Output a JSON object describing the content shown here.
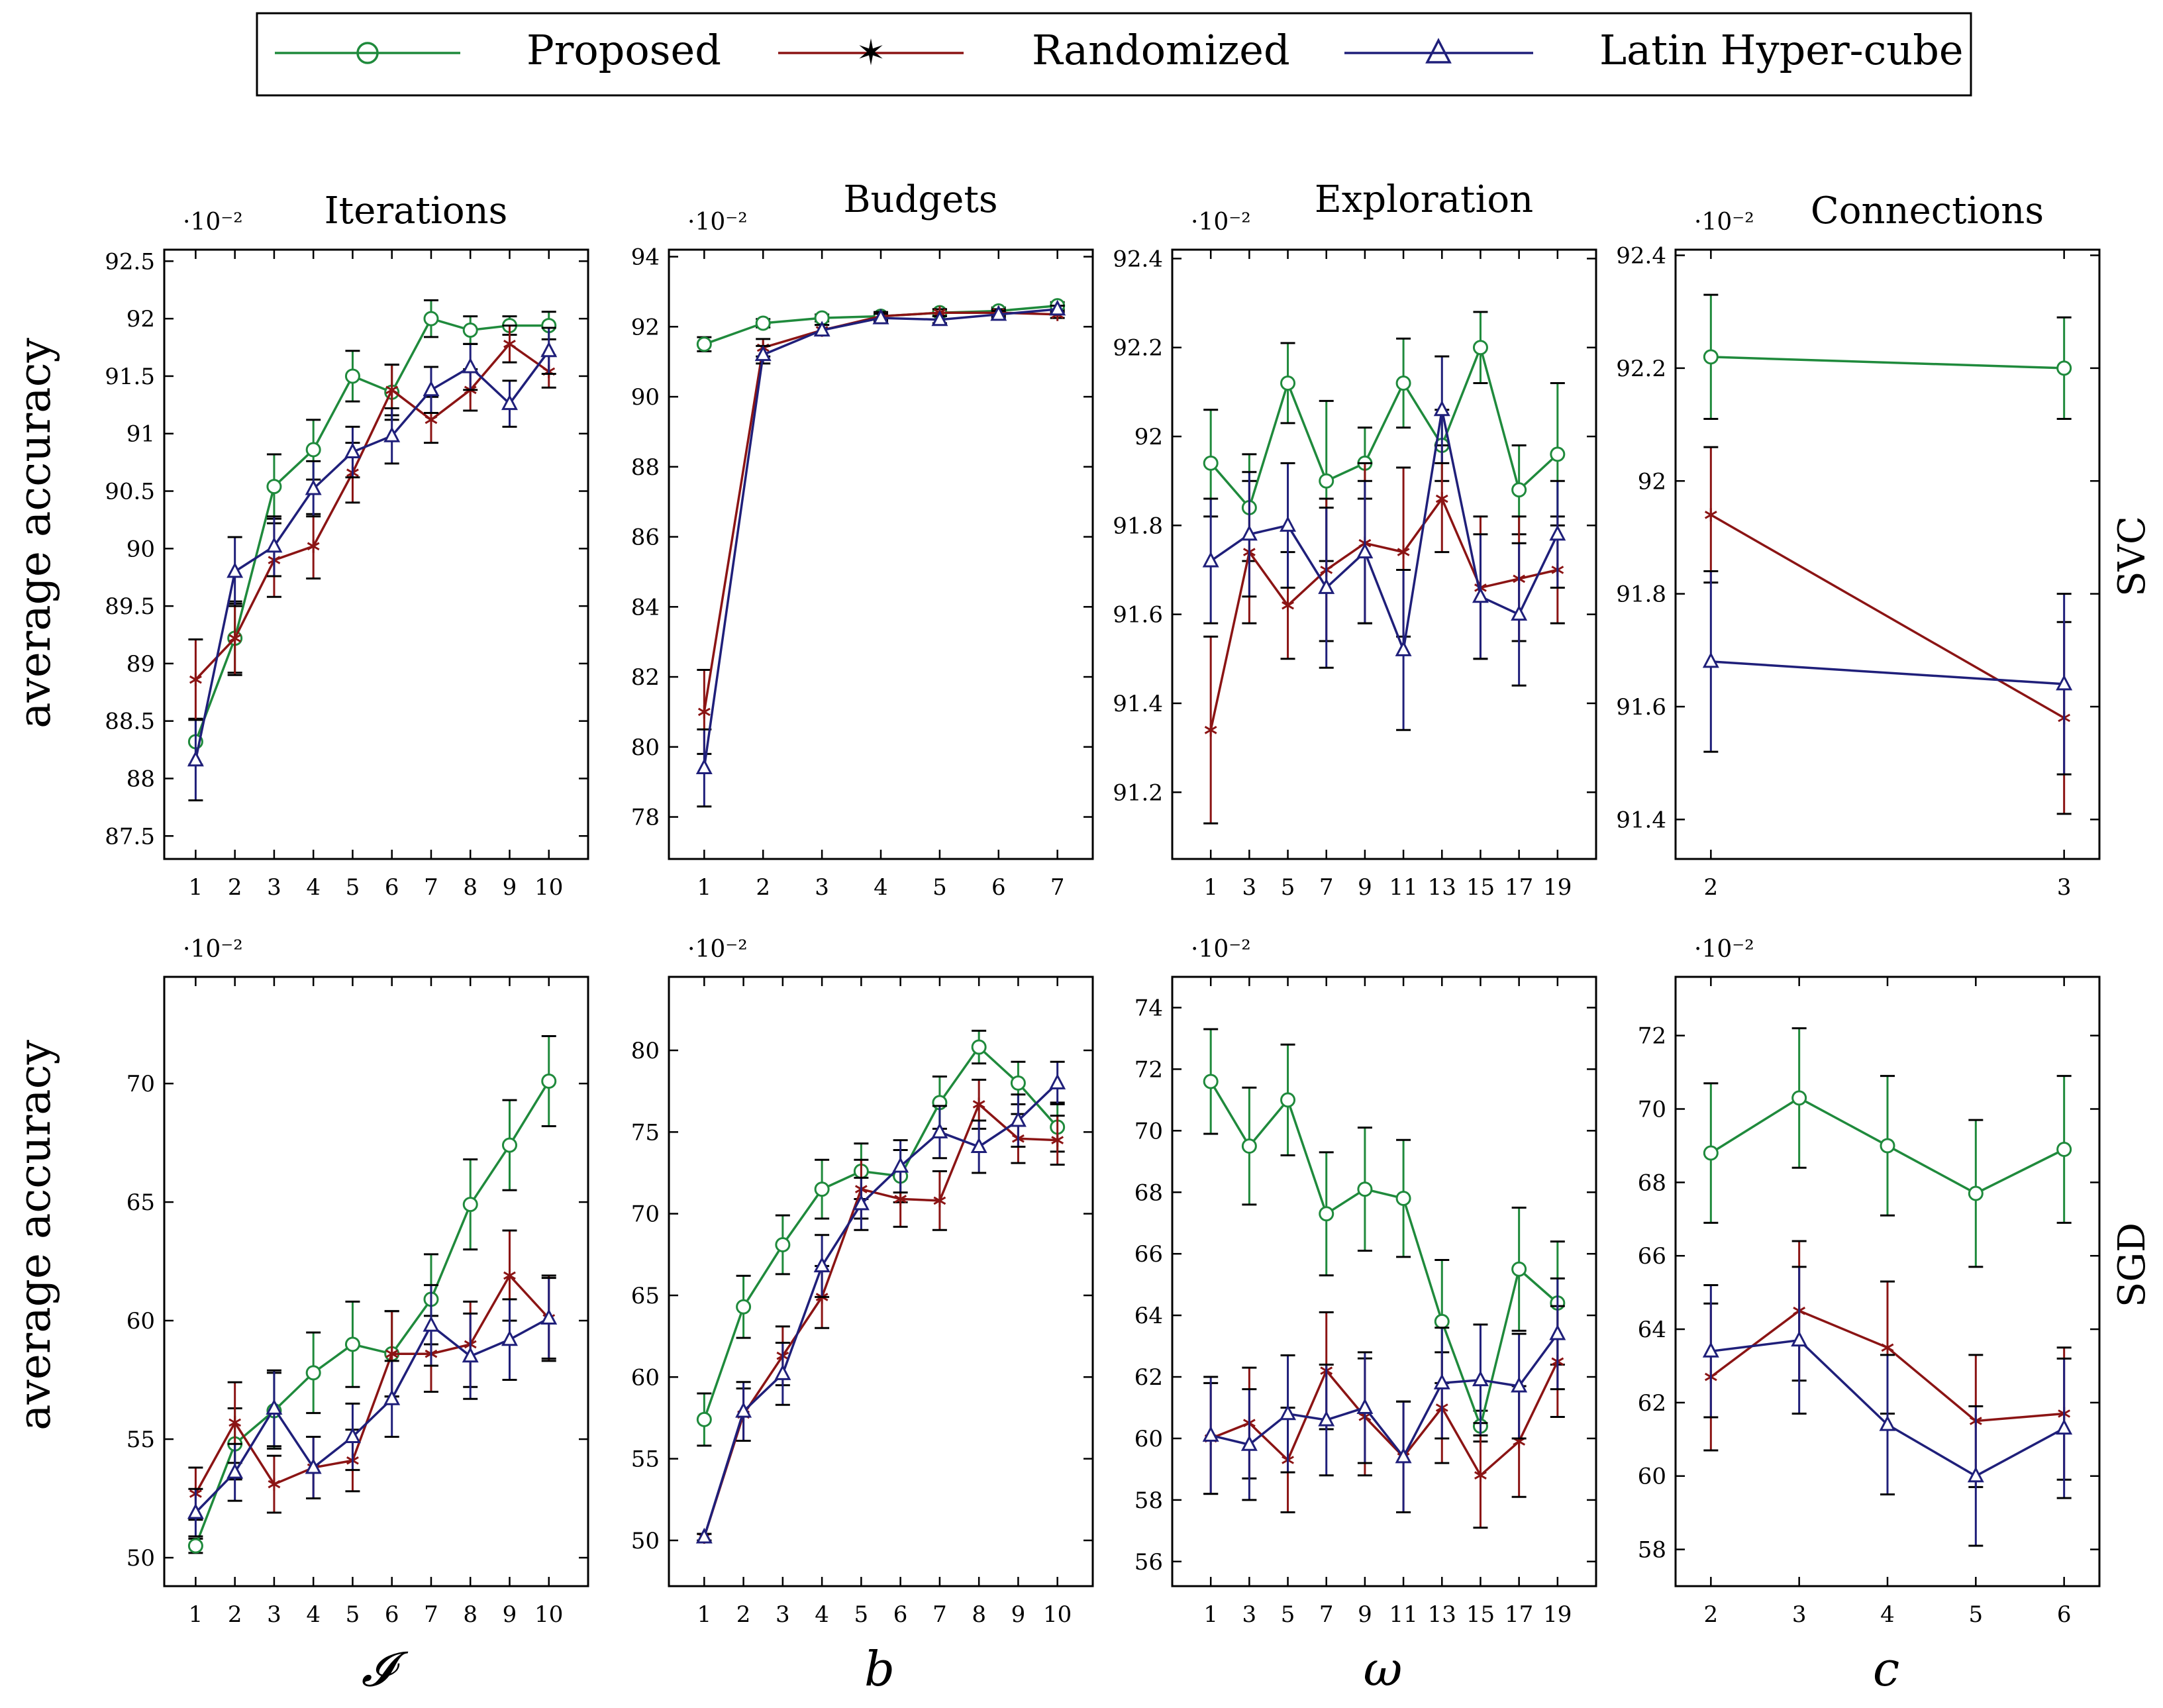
{
  "legend": {
    "items": [
      {
        "label": "Proposed",
        "color": "#1f8a3c",
        "marker": "circle"
      },
      {
        "label": "Randomized",
        "color": "#8b1414",
        "marker": "star"
      },
      {
        "label": "Latin Hyper-cube",
        "color": "#1f1f7a",
        "marker": "triangle"
      }
    ]
  },
  "row_labels": [
    "SVC",
    "SGD"
  ],
  "ylabel": "average accuracy",
  "col_xlabels": [
    "𝓘",
    "b",
    "ω",
    "c"
  ],
  "scale_text": "·10⁻²",
  "chart_data": [
    {
      "type": "line",
      "title": "Iterations",
      "row": "SVC",
      "xlabel": "𝓘",
      "ylabel": "average accuracy",
      "x": [
        1,
        2,
        3,
        4,
        5,
        6,
        7,
        8,
        9,
        10
      ],
      "xticks": [
        "1",
        "2",
        "3",
        "4",
        "5",
        "6",
        "7",
        "8",
        "9",
        "10"
      ],
      "xlim": [
        0.2,
        11
      ],
      "yticks": [
        87.5,
        88,
        88.5,
        89,
        89.5,
        90,
        90.5,
        91,
        91.5,
        92,
        92.5
      ],
      "yticklabels": [
        "87.5",
        "88",
        "88.5",
        "89",
        "89.5",
        "90",
        "90.5",
        "91",
        "91.5",
        "92",
        "92.5"
      ],
      "ylim": [
        87.3,
        92.6
      ],
      "series": [
        {
          "name": "Proposed",
          "values": [
            88.32,
            89.22,
            90.54,
            90.86,
            91.5,
            91.36,
            92.0,
            91.9,
            91.94,
            91.94
          ],
          "errors": [
            0.2,
            0.3,
            0.28,
            0.26,
            0.22,
            0.24,
            0.16,
            0.12,
            0.08,
            0.12
          ]
        },
        {
          "name": "Randomized",
          "values": [
            88.86,
            89.22,
            89.9,
            90.02,
            90.66,
            91.38,
            91.12,
            91.38,
            91.78,
            91.54
          ],
          "errors": [
            0.35,
            0.32,
            0.32,
            0.28,
            0.26,
            0.22,
            0.2,
            0.18,
            0.16,
            0.14
          ]
        },
        {
          "name": "Latin Hyper-cube",
          "values": [
            88.16,
            89.8,
            90.02,
            90.52,
            90.84,
            90.98,
            91.38,
            91.58,
            91.26,
            91.72
          ],
          "errors": [
            0.35,
            0.3,
            0.26,
            0.24,
            0.22,
            0.24,
            0.2,
            0.2,
            0.2,
            0.2
          ]
        }
      ]
    },
    {
      "type": "line",
      "title": "Budgets",
      "row": "SVC",
      "xlabel": "b",
      "ylabel": "average accuracy",
      "x": [
        1,
        2,
        3,
        4,
        5,
        6,
        7
      ],
      "xticks": [
        "1",
        "2",
        "3",
        "4",
        "5",
        "6",
        "7"
      ],
      "xlim": [
        0.4,
        7.6
      ],
      "yticks": [
        78,
        80,
        82,
        84,
        86,
        88,
        90,
        92,
        94
      ],
      "yticklabels": [
        "78",
        "80",
        "82",
        "84",
        "86",
        "88",
        "90",
        "92",
        "94"
      ],
      "ylim": [
        76.8,
        94.2
      ],
      "series": [
        {
          "name": "Proposed",
          "values": [
            91.5,
            92.1,
            92.25,
            92.3,
            92.4,
            92.45,
            92.6
          ],
          "errors": [
            0.2,
            0.12,
            0.1,
            0.1,
            0.1,
            0.1,
            0.1
          ]
        },
        {
          "name": "Randomized",
          "values": [
            81.0,
            91.4,
            91.9,
            92.3,
            92.4,
            92.4,
            92.35
          ],
          "errors": [
            1.2,
            0.25,
            0.15,
            0.12,
            0.1,
            0.1,
            0.1
          ]
        },
        {
          "name": "Latin Hyper-cube",
          "values": [
            79.4,
            91.2,
            91.9,
            92.25,
            92.2,
            92.35,
            92.5
          ],
          "errors": [
            1.1,
            0.25,
            0.15,
            0.12,
            0.1,
            0.1,
            0.1
          ]
        }
      ]
    },
    {
      "type": "line",
      "title": "Exploration",
      "row": "SVC",
      "xlabel": "ω",
      "ylabel": "average accuracy",
      "x": [
        1,
        3,
        5,
        7,
        9,
        11,
        13,
        15,
        17,
        19
      ],
      "xticks": [
        "1",
        "3",
        "5",
        "7",
        "9",
        "11",
        "13",
        "15",
        "17",
        "19"
      ],
      "xlim": [
        -1,
        21
      ],
      "yticks": [
        91.2,
        91.4,
        91.6,
        91.8,
        92,
        92.2,
        92.4
      ],
      "yticklabels": [
        "91.2",
        "91.4",
        "91.6",
        "91.8",
        "92",
        "92.2",
        "92.4"
      ],
      "ylim": [
        91.05,
        92.42
      ],
      "series": [
        {
          "name": "Proposed",
          "values": [
            91.94,
            91.84,
            92.12,
            91.9,
            91.94,
            92.12,
            91.98,
            92.2,
            91.88,
            91.96
          ],
          "errors": [
            0.12,
            0.12,
            0.09,
            0.18,
            0.08,
            0.1,
            0.08,
            0.08,
            0.1,
            0.16
          ]
        },
        {
          "name": "Randomized",
          "values": [
            91.34,
            91.74,
            91.62,
            91.7,
            91.76,
            91.74,
            91.86,
            91.66,
            91.68,
            91.7
          ],
          "errors": [
            0.21,
            0.16,
            0.12,
            0.16,
            0.18,
            0.19,
            0.12,
            0.16,
            0.14,
            0.12
          ]
        },
        {
          "name": "Latin Hyper-cube",
          "values": [
            91.72,
            91.78,
            91.8,
            91.66,
            91.74,
            91.52,
            92.06,
            91.64,
            91.6,
            91.78
          ],
          "errors": [
            0.14,
            0.14,
            0.14,
            0.18,
            0.16,
            0.18,
            0.12,
            0.14,
            0.16,
            0.12
          ]
        }
      ]
    },
    {
      "type": "line",
      "title": "Connections",
      "row": "SVC",
      "xlabel": "c",
      "ylabel": "average accuracy",
      "x": [
        2,
        3
      ],
      "xticks": [
        "2",
        "3"
      ],
      "xlim": [
        1.9,
        3.1
      ],
      "yticks": [
        91.4,
        91.6,
        91.8,
        92,
        92.2,
        92.4
      ],
      "yticklabels": [
        "91.4",
        "91.6",
        "91.8",
        "92",
        "92.2",
        "92.4"
      ],
      "ylim": [
        91.33,
        92.41
      ],
      "series": [
        {
          "name": "Proposed",
          "values": [
            92.22,
            92.2
          ],
          "errors": [
            0.11,
            0.09
          ]
        },
        {
          "name": "Randomized",
          "values": [
            91.94,
            91.58
          ],
          "errors": [
            0.12,
            0.17
          ]
        },
        {
          "name": "Latin Hyper-cube",
          "values": [
            91.68,
            91.64
          ],
          "errors": [
            0.16,
            0.16
          ]
        }
      ]
    },
    {
      "type": "line",
      "title": "",
      "row": "SGD",
      "xlabel": "𝓘",
      "ylabel": "average accuracy",
      "x": [
        1,
        2,
        3,
        4,
        5,
        6,
        7,
        8,
        9,
        10
      ],
      "xticks": [
        "1",
        "2",
        "3",
        "4",
        "5",
        "6",
        "7",
        "8",
        "9",
        "10"
      ],
      "xlim": [
        0.2,
        11
      ],
      "yticks": [
        50,
        55,
        60,
        65,
        70
      ],
      "yticklabels": [
        "50",
        "55",
        "60",
        "65",
        "70"
      ],
      "ylim": [
        48.8,
        74.5
      ],
      "series": [
        {
          "name": "Proposed",
          "values": [
            50.5,
            54.8,
            56.2,
            57.8,
            59.0,
            58.6,
            60.9,
            64.9,
            67.4,
            70.1
          ],
          "errors": [
            0.3,
            1.5,
            1.6,
            1.7,
            1.8,
            1.8,
            1.9,
            1.9,
            1.9,
            1.9
          ]
        },
        {
          "name": "Randomized",
          "values": [
            52.7,
            55.7,
            53.1,
            53.8,
            54.1,
            58.6,
            58.6,
            59.0,
            61.9,
            60.1
          ],
          "errors": [
            1.1,
            1.7,
            1.2,
            1.3,
            1.3,
            1.8,
            1.6,
            1.8,
            1.9,
            1.8
          ]
        },
        {
          "name": "Latin Hyper-cube",
          "values": [
            51.9,
            53.6,
            56.3,
            53.8,
            55.1,
            56.7,
            59.8,
            58.5,
            59.2,
            60.1
          ],
          "errors": [
            1.0,
            1.2,
            1.6,
            1.3,
            1.4,
            1.6,
            1.7,
            1.8,
            1.7,
            1.7
          ]
        }
      ]
    },
    {
      "type": "line",
      "title": "",
      "row": "SGD",
      "xlabel": "b",
      "ylabel": "average accuracy",
      "x": [
        1,
        2,
        3,
        4,
        5,
        6,
        7,
        8,
        9,
        10
      ],
      "xticks": [
        "1",
        "2",
        "3",
        "4",
        "5",
        "6",
        "7",
        "8",
        "9",
        "10"
      ],
      "xlim": [
        0.1,
        10.9
      ],
      "yticks": [
        50,
        55,
        60,
        65,
        70,
        75,
        80
      ],
      "yticklabels": [
        "50",
        "55",
        "60",
        "65",
        "70",
        "75",
        "80"
      ],
      "ylim": [
        47.2,
        84.5
      ],
      "series": [
        {
          "name": "Proposed",
          "values": [
            57.4,
            64.3,
            68.1,
            71.5,
            72.6,
            72.3,
            76.8,
            80.2,
            78.0,
            75.3
          ],
          "errors": [
            1.6,
            1.9,
            1.8,
            1.8,
            1.7,
            1.6,
            1.6,
            1.0,
            1.3,
            1.5
          ]
        },
        {
          "name": "Randomized",
          "values": [
            50.2,
            57.7,
            61.3,
            64.9,
            71.5,
            70.9,
            70.8,
            76.7,
            74.6,
            74.5
          ],
          "errors": [
            0.2,
            1.6,
            1.8,
            1.9,
            1.8,
            1.7,
            1.8,
            1.5,
            1.5,
            1.5
          ]
        },
        {
          "name": "Latin Hyper-cube",
          "values": [
            50.2,
            57.9,
            60.2,
            66.8,
            70.6,
            72.9,
            75.0,
            74.1,
            75.7,
            78.0
          ],
          "errors": [
            0.2,
            1.8,
            1.9,
            1.9,
            1.6,
            1.6,
            1.6,
            1.6,
            1.6,
            1.3
          ]
        }
      ]
    },
    {
      "type": "line",
      "title": "",
      "row": "SGD",
      "xlabel": "ω",
      "ylabel": "average accuracy",
      "x": [
        1,
        3,
        5,
        7,
        9,
        11,
        13,
        15,
        17,
        19
      ],
      "xticks": [
        "1",
        "3",
        "5",
        "7",
        "9",
        "11",
        "13",
        "15",
        "17",
        "19"
      ],
      "xlim": [
        -1,
        21
      ],
      "yticks": [
        56,
        58,
        60,
        62,
        64,
        66,
        68,
        70,
        72,
        74
      ],
      "yticklabels": [
        "56",
        "58",
        "60",
        "62",
        "64",
        "66",
        "68",
        "70",
        "72",
        "74"
      ],
      "ylim": [
        55.2,
        75.0
      ],
      "series": [
        {
          "name": "Proposed",
          "values": [
            71.6,
            69.5,
            71.0,
            67.3,
            68.1,
            67.8,
            63.8,
            60.4,
            65.5,
            64.4
          ],
          "errors": [
            1.7,
            1.9,
            1.8,
            2.0,
            2.0,
            1.9,
            2.0,
            0.5,
            2.0,
            2.0
          ]
        },
        {
          "name": "Randomized",
          "values": [
            60.0,
            60.5,
            59.3,
            62.2,
            60.7,
            59.4,
            61.0,
            58.8,
            59.9,
            62.5
          ],
          "errors": [
            1.8,
            1.8,
            1.7,
            1.9,
            1.9,
            1.8,
            1.8,
            1.7,
            1.8,
            1.8
          ]
        },
        {
          "name": "Latin Hyper-cube",
          "values": [
            60.1,
            59.8,
            60.8,
            60.6,
            61.0,
            59.4,
            61.8,
            61.9,
            61.7,
            63.4
          ],
          "errors": [
            1.9,
            1.8,
            1.9,
            1.8,
            1.8,
            1.8,
            1.8,
            1.8,
            1.7,
            1.8
          ]
        }
      ]
    },
    {
      "type": "line",
      "title": "",
      "row": "SGD",
      "xlabel": "c",
      "ylabel": "average accuracy",
      "x": [
        2,
        3,
        4,
        5,
        6
      ],
      "xticks": [
        "2",
        "3",
        "4",
        "5",
        "6"
      ],
      "xlim": [
        1.6,
        6.4
      ],
      "yticks": [
        58,
        60,
        62,
        64,
        66,
        68,
        70,
        72
      ],
      "yticklabels": [
        "58",
        "60",
        "62",
        "64",
        "66",
        "68",
        "70",
        "72"
      ],
      "ylim": [
        57.0,
        73.6
      ],
      "series": [
        {
          "name": "Proposed",
          "values": [
            68.8,
            70.3,
            69.0,
            67.7,
            68.9
          ],
          "errors": [
            1.9,
            1.9,
            1.9,
            2.0,
            2.0
          ]
        },
        {
          "name": "Randomized",
          "values": [
            62.7,
            64.5,
            63.5,
            61.5,
            61.7
          ],
          "errors": [
            2.0,
            1.9,
            1.8,
            1.8,
            1.8
          ]
        },
        {
          "name": "Latin Hyper-cube",
          "values": [
            63.4,
            63.7,
            61.4,
            60.0,
            61.3
          ],
          "errors": [
            1.8,
            2.0,
            1.9,
            1.9,
            1.9
          ]
        }
      ]
    }
  ]
}
